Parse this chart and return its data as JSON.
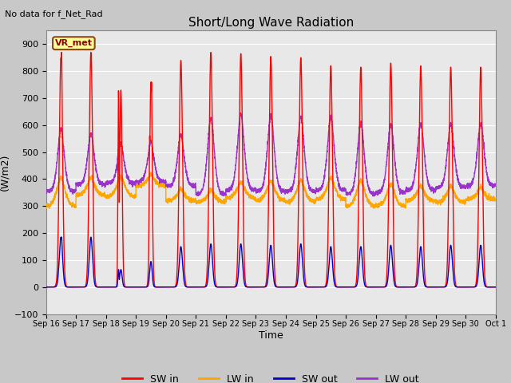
{
  "title": "Short/Long Wave Radiation",
  "xlabel": "Time",
  "ylabel": "(W/m2)",
  "ylim": [
    -100,
    950
  ],
  "yticks": [
    -100,
    0,
    100,
    200,
    300,
    400,
    500,
    600,
    700,
    800,
    900
  ],
  "top_left_text": "No data for f_Net_Rad",
  "legend_labels": [
    "SW in",
    "LW in",
    "SW out",
    "LW out"
  ],
  "station_label": "VR_met",
  "background_color": "#E8E8E8",
  "grid_color": "#FFFFFF",
  "fig_facecolor": "#C8C8C8",
  "n_days": 15,
  "points_per_day": 288,
  "sw_in_peaks": [
    850,
    870,
    730,
    760,
    840,
    870,
    865,
    855,
    850,
    820,
    815,
    830,
    820,
    815,
    815
  ],
  "sw_in_width": [
    0.055,
    0.055,
    0.04,
    0.04,
    0.055,
    0.055,
    0.055,
    0.055,
    0.055,
    0.055,
    0.055,
    0.055,
    0.055,
    0.055,
    0.055
  ],
  "sw_out_peaks": [
    185,
    185,
    65,
    95,
    150,
    160,
    160,
    155,
    160,
    150,
    150,
    155,
    150,
    155,
    155
  ],
  "sw_out_width": [
    0.055,
    0.055,
    0.04,
    0.04,
    0.055,
    0.055,
    0.055,
    0.055,
    0.055,
    0.055,
    0.055,
    0.055,
    0.055,
    0.055,
    0.055
  ],
  "lw_in_base": [
    300,
    340,
    335,
    375,
    320,
    315,
    330,
    320,
    315,
    325,
    300,
    300,
    320,
    315,
    325
  ],
  "lw_in_peak_add": [
    90,
    50,
    60,
    30,
    30,
    30,
    45,
    60,
    65,
    65,
    80,
    65,
    40,
    45,
    30
  ],
  "lw_out_base": [
    355,
    380,
    385,
    390,
    375,
    345,
    360,
    355,
    355,
    360,
    345,
    350,
    360,
    370,
    375
  ],
  "lw_out_peak_add": [
    200,
    160,
    120,
    120,
    160,
    250,
    250,
    250,
    245,
    240,
    235,
    225,
    215,
    205,
    200
  ],
  "sw_in_color": "#FF0000",
  "lw_in_color": "#FFA500",
  "sw_out_color": "#0000CD",
  "lw_out_color": "#9933CC",
  "linewidth": 1.0,
  "day_labels": [
    "Sep 16",
    "Sep 17",
    "Sep 18",
    "Sep 19",
    "Sep 20",
    "Sep 21",
    "Sep 22",
    "Sep 23",
    "Sep 24",
    "Sep 25",
    "Sep 26",
    "Sep 27",
    "Sep 28",
    "Sep 29",
    "Sep 30",
    "Oct 1"
  ]
}
